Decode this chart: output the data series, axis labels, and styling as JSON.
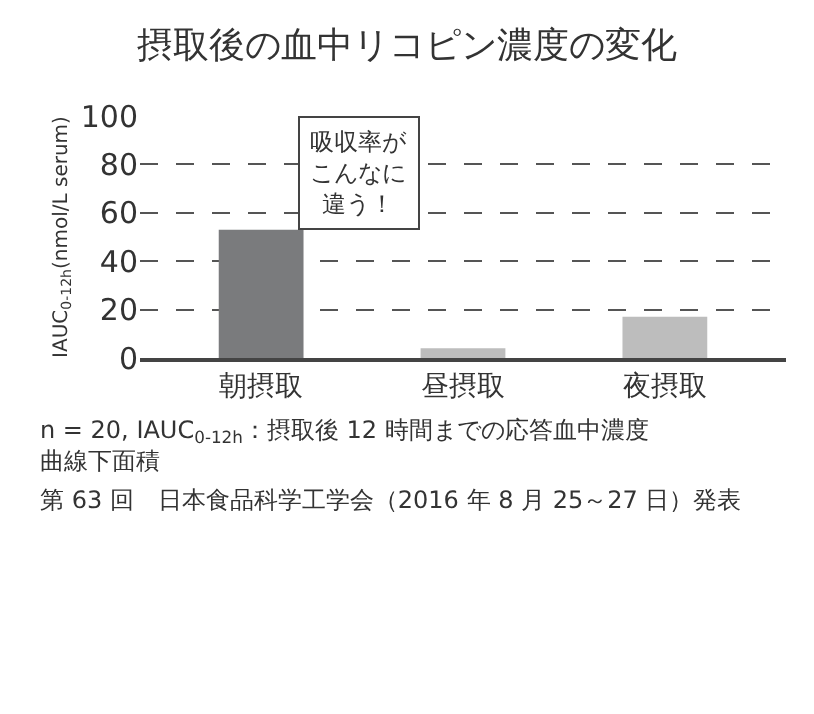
{
  "chart_data": {
    "type": "bar",
    "title": "摂取後の血中リコピン濃度の変化",
    "ylabel": "IAUC$_{0-12h}$(nmol/L serum)",
    "categories": [
      "朝摂取",
      "昼摂取",
      "夜摂取"
    ],
    "values": [
      53,
      4,
      17
    ],
    "colors": [
      "#7a7b7d",
      "#bdbdbd",
      "#bdbdbd"
    ],
    "ylim": [
      0,
      100
    ],
    "yticks": [
      0,
      20,
      40,
      60,
      80,
      100
    ],
    "grid": "y",
    "annotations": [
      {
        "text": "吸収率がこんなに違う！",
        "x": "朝摂取",
        "y": 53
      },
      "n = 20, IAUC$_{0-12h}$：摂取後 12 時間までの応答血中濃度曲線下面積",
      "第 63 回　日本食品科学工学会（2016 年 8 月 25～27 日）発表"
    ]
  }
}
